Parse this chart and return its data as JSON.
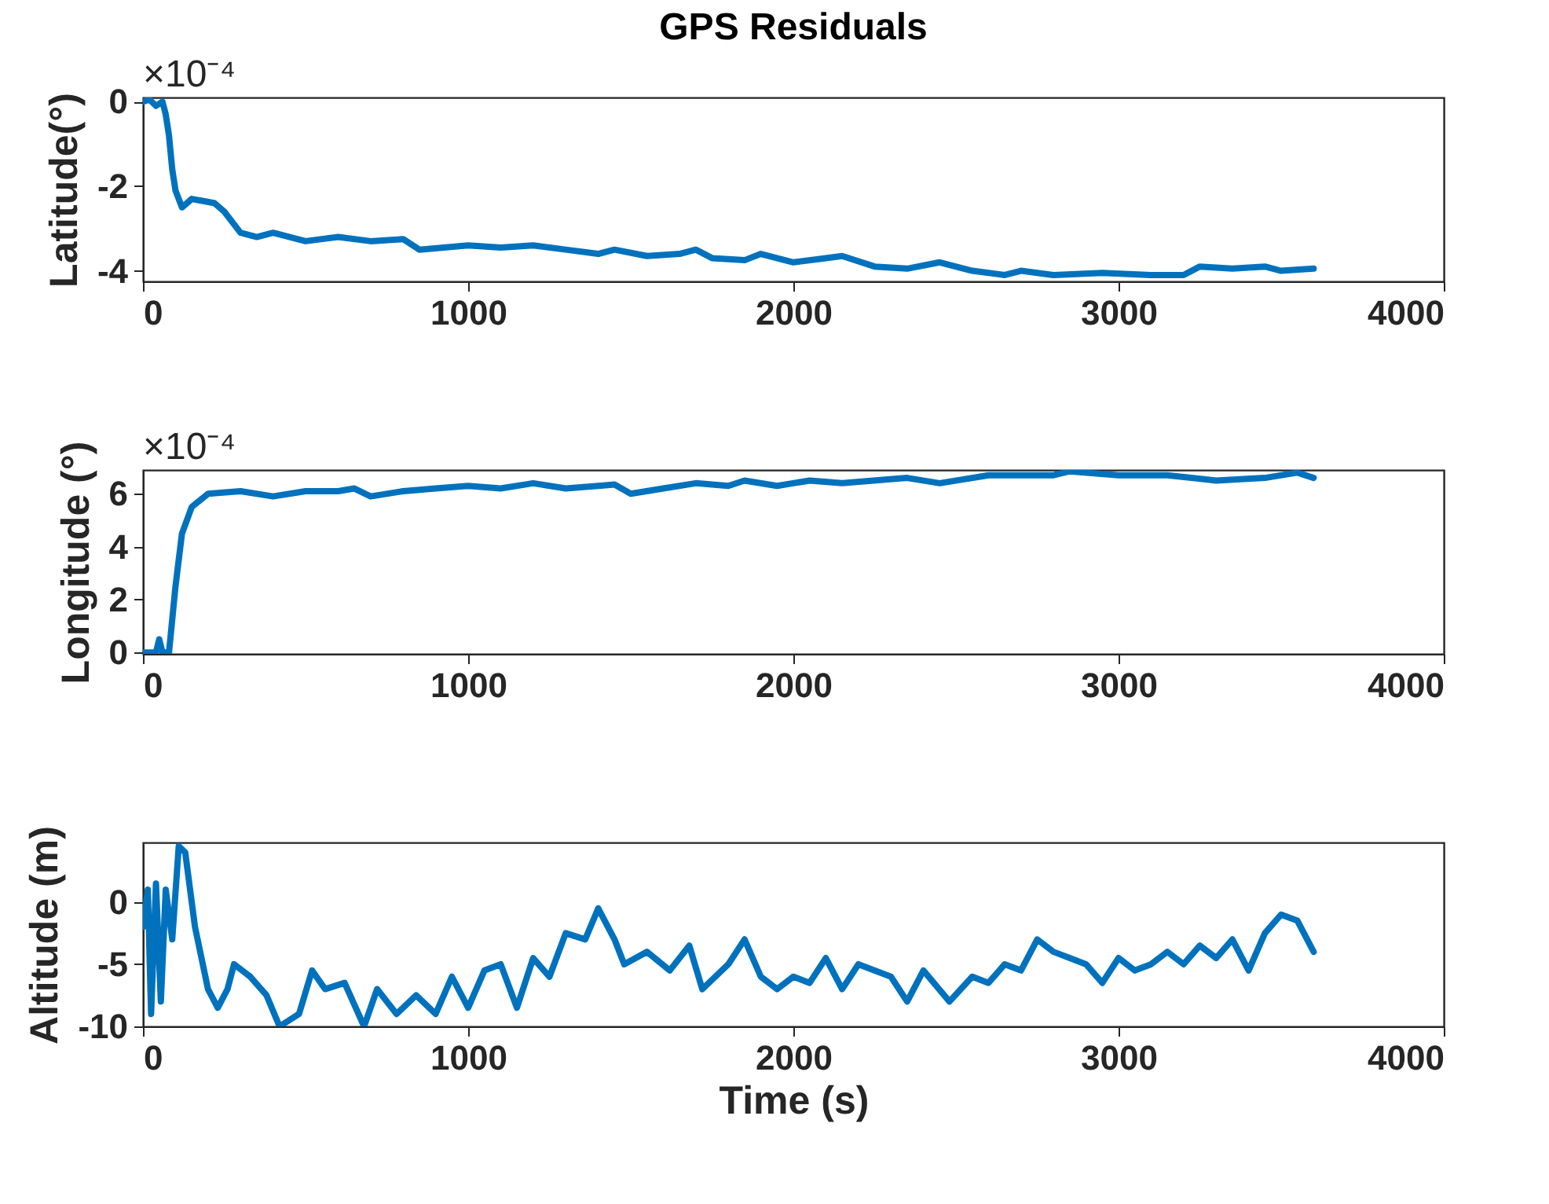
{
  "chart_data": [
    {
      "type": "line",
      "title": "GPS Residuals",
      "ylabel": "Latitude(°)",
      "annotations": [
        "×10⁻⁴"
      ],
      "grid": false,
      "xlim": [
        0,
        4000
      ],
      "xticks": [
        0,
        1000,
        2000,
        3000,
        4000
      ],
      "ylim": [
        -4.25,
        0.1
      ],
      "yticks": [
        -4,
        -2,
        0
      ],
      "series": [
        {
          "color": "#0072bd",
          "x": [
            0,
            20,
            40,
            60,
            70,
            80,
            90,
            100,
            120,
            150,
            220,
            250,
            300,
            350,
            400,
            500,
            600,
            700,
            800,
            850,
            1000,
            1100,
            1200,
            1300,
            1400,
            1450,
            1550,
            1650,
            1700,
            1750,
            1850,
            1900,
            2000,
            2100,
            2150,
            2250,
            2350,
            2450,
            2550,
            2650,
            2700,
            2800,
            2950,
            3100,
            3200,
            3250,
            3350,
            3450,
            3500,
            3600
          ],
          "values": [
            0,
            0.05,
            -0.1,
            0,
            -0.3,
            -0.8,
            -1.6,
            -2.1,
            -2.5,
            -2.3,
            -2.4,
            -2.6,
            -3.1,
            -3.2,
            -3.1,
            -3.3,
            -3.2,
            -3.3,
            -3.25,
            -3.5,
            -3.4,
            -3.45,
            -3.4,
            -3.5,
            -3.6,
            -3.5,
            -3.65,
            -3.6,
            -3.5,
            -3.7,
            -3.75,
            -3.6,
            -3.8,
            -3.7,
            -3.65,
            -3.9,
            -3.95,
            -3.8,
            -4,
            -4.1,
            -4,
            -4.1,
            -4.05,
            -4.1,
            -4.1,
            -3.9,
            -3.95,
            -3.9,
            -4,
            -3.95
          ]
        }
      ]
    },
    {
      "type": "line",
      "ylabel": "Longitude (°)",
      "annotations": [
        "×10⁻⁴"
      ],
      "grid": false,
      "xlim": [
        0,
        4000
      ],
      "xticks": [
        0,
        1000,
        2000,
        3000,
        4000
      ],
      "ylim": [
        -0.05,
        6.9
      ],
      "yticks": [
        0,
        2,
        4,
        6
      ],
      "series": [
        {
          "color": "#0072bd",
          "x": [
            0,
            40,
            50,
            60,
            80,
            100,
            120,
            150,
            200,
            300,
            400,
            500,
            600,
            650,
            700,
            800,
            900,
            1000,
            1100,
            1200,
            1300,
            1400,
            1450,
            1500,
            1600,
            1700,
            1800,
            1850,
            1950,
            2050,
            2150,
            2350,
            2450,
            2600,
            2800,
            2850,
            3000,
            3150,
            3300,
            3450,
            3550,
            3600
          ],
          "values": [
            0,
            0,
            0.5,
            0,
            0,
            2.5,
            4.5,
            5.5,
            6,
            6.1,
            5.9,
            6.1,
            6.1,
            6.2,
            5.9,
            6.1,
            6.2,
            6.3,
            6.2,
            6.4,
            6.2,
            6.3,
            6.35,
            6,
            6.2,
            6.4,
            6.3,
            6.5,
            6.3,
            6.5,
            6.4,
            6.6,
            6.4,
            6.7,
            6.7,
            6.85,
            6.7,
            6.7,
            6.5,
            6.6,
            6.8,
            6.6
          ]
        }
      ]
    },
    {
      "type": "line",
      "xlabel": "Time (s)",
      "ylabel": "Altitude (m)",
      "grid": false,
      "xlim": [
        0,
        4000
      ],
      "xticks": [
        0,
        1000,
        2000,
        3000,
        4000
      ],
      "ylim": [
        -10,
        4.8
      ],
      "yticks": [
        -10,
        -5,
        0
      ],
      "series": [
        {
          "color": "#0072bd",
          "x": [
            0,
            15,
            25,
            40,
            55,
            70,
            90,
            110,
            130,
            160,
            200,
            230,
            260,
            280,
            330,
            380,
            420,
            480,
            520,
            560,
            620,
            680,
            720,
            780,
            840,
            900,
            950,
            1000,
            1050,
            1100,
            1150,
            1200,
            1250,
            1300,
            1360,
            1400,
            1450,
            1480,
            1550,
            1620,
            1680,
            1720,
            1800,
            1850,
            1900,
            1950,
            2000,
            2050,
            2100,
            2150,
            2200,
            2300,
            2350,
            2400,
            2480,
            2550,
            2600,
            2650,
            2700,
            2750,
            2800,
            2850,
            2900,
            2950,
            3000,
            3050,
            3100,
            3150,
            3200,
            3250,
            3300,
            3350,
            3400,
            3450,
            3500,
            3550,
            3600
          ],
          "values": [
            -2,
            1,
            -9,
            1.5,
            -8,
            1,
            -3,
            4.5,
            4,
            -2,
            -7,
            -8.5,
            -7,
            -5,
            -6,
            -7.5,
            -10,
            -9,
            -5.5,
            -7,
            -6.5,
            -10,
            -7,
            -9,
            -7.5,
            -9,
            -6,
            -8.5,
            -5.5,
            -5,
            -8.5,
            -4.5,
            -6,
            -2.5,
            -3,
            -0.5,
            -3,
            -5,
            -4,
            -5.5,
            -3.5,
            -7,
            -5,
            -3,
            -6,
            -7,
            -6,
            -6.5,
            -4.5,
            -7,
            -5,
            -6,
            -8,
            -5.5,
            -8,
            -6,
            -6.5,
            -5,
            -5.5,
            -3,
            -4,
            -4.5,
            -5,
            -6.5,
            -4.5,
            -5.5,
            -5,
            -4,
            -5,
            -3.5,
            -4.5,
            -3,
            -5.5,
            -2.5,
            -1,
            -1.5,
            -4
          ]
        }
      ]
    }
  ]
}
